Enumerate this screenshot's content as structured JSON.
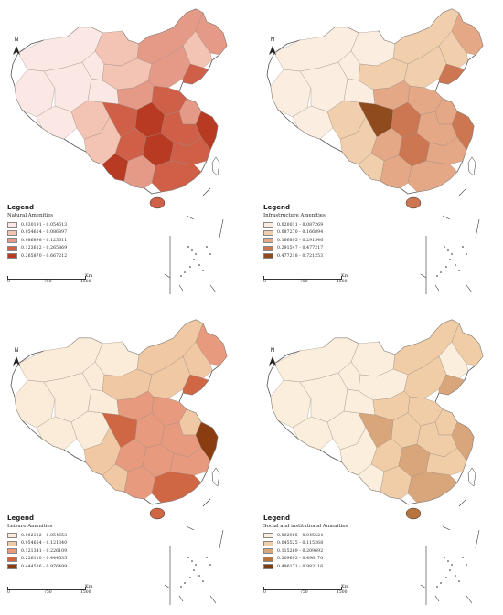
{
  "north_label": "N",
  "legend_heading": "Legend",
  "scale": {
    "ticks": [
      "0",
      "750",
      "1500"
    ],
    "unit": "Km"
  },
  "colors": [
    "#fbeee1",
    "#f2c9a5",
    "#e49a78",
    "#cc5c3c",
    "#8a3b12"
  ],
  "maps": [
    {
      "title": "Natural Amenities",
      "classes": [
        "0.030191 - 0.054613",
        "0.054614 - 0.086897",
        "0.086898 - 0.123611",
        "0.123612 - 0.265869",
        "0.265870 - 0.667212"
      ],
      "colors": [
        "#fbe8e4",
        "#f3c3b3",
        "#e59a88",
        "#d05f48",
        "#b83a22"
      ]
    },
    {
      "title": "Infrastructure Amenities",
      "classes": [
        "0.020011 - 0.087269",
        "0.087270 - 0.166894",
        "0.166895 - 0.291546",
        "0.291547 - 0.477217",
        "0.477218 - 0.721253"
      ],
      "colors": [
        "#fbeee1",
        "#f1cfac",
        "#e5a886",
        "#cc7752",
        "#8f4a1d"
      ]
    },
    {
      "title": "Leisure Amenities",
      "classes": [
        "0.002122 - 0.054653",
        "0.054654 - 0.121340",
        "0.121341 - 0.226109",
        "0.226110 - 0.444535",
        "0.444536 - 0.976499"
      ],
      "colors": [
        "#fbecd9",
        "#f0c8a4",
        "#e89a7e",
        "#cf6644",
        "#8a3d10"
      ]
    },
    {
      "title": "Social and institutional Amenities",
      "classes": [
        "0.002985 - 0.045524",
        "0.045525 - 0.115268",
        "0.115269 - 0.209692",
        "0.209693 - 0.496170",
        "0.496171 - 0.983116"
      ],
      "colors": [
        "#fbeedd",
        "#f0cda6",
        "#d9a57a",
        "#b8743f",
        "#7a3e10"
      ]
    }
  ]
}
